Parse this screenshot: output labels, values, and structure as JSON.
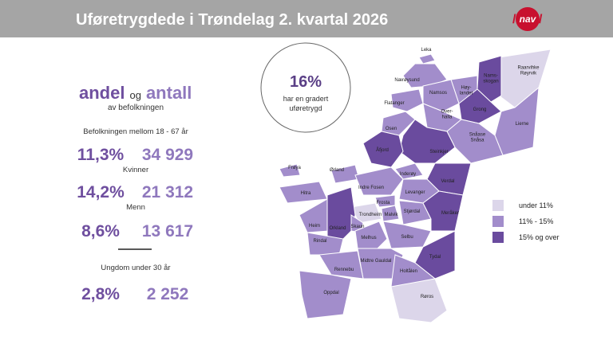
{
  "header": {
    "title": "Uføretrygdede i Trøndelag 2. kvartal 2026",
    "logo": "nav"
  },
  "left": {
    "heading_a": "andel",
    "heading_og": "og",
    "heading_b": "antall",
    "subheading": "av befolkningen",
    "groups": [
      {
        "label": "Befolkningen mellom 18 - 67 år",
        "share": "11,3%",
        "count": "34 929"
      },
      {
        "label": "Kvinner",
        "share": "14,2%",
        "count": "21 312"
      },
      {
        "label": "Menn",
        "share": "8,6%",
        "count": "13 617"
      },
      {
        "label": "Ungdom under 30 år",
        "share": "2,8%",
        "count": "2 252"
      }
    ]
  },
  "callout": {
    "value": "16%",
    "text": [
      "har en gradert",
      "uføretrygd"
    ]
  },
  "legend": [
    {
      "label": "under 11%",
      "color": "#dcd6ea"
    },
    {
      "label": "11% - 15%",
      "color": "#a28dcb"
    },
    {
      "label": "15% og over",
      "color": "#6a4b9e"
    }
  ],
  "municipalities": [
    {
      "label": [
        "Leka"
      ],
      "level": 1
    },
    {
      "label": [
        "Nærøysund"
      ],
      "level": 1
    },
    {
      "label": [
        "Raarvihke",
        "Røyrvik"
      ],
      "level": 0
    },
    {
      "label": [
        "Nams-",
        "skogan"
      ],
      "level": 2
    },
    {
      "label": [
        "Høy-",
        "landet"
      ],
      "level": 1
    },
    {
      "label": [
        "Namsos"
      ],
      "level": 1
    },
    {
      "label": [
        "Grong"
      ],
      "level": 2
    },
    {
      "label": [
        "Lierne"
      ],
      "level": 1
    },
    {
      "label": [
        "Flatanger"
      ],
      "level": 1
    },
    {
      "label": [
        "Over-",
        "halla"
      ],
      "level": 1
    },
    {
      "label": [
        "Osen"
      ],
      "level": 1
    },
    {
      "label": [
        "Snåase",
        "Snåsa"
      ],
      "level": 1
    },
    {
      "label": [
        "Steinkjer"
      ],
      "level": 2
    },
    {
      "label": [
        "Åfjord"
      ],
      "level": 2
    },
    {
      "label": [
        "Frøya"
      ],
      "level": 1
    },
    {
      "label": [
        "Ørland"
      ],
      "level": 1
    },
    {
      "label": [
        "Inderøy"
      ],
      "level": 1
    },
    {
      "label": [
        "Verdal"
      ],
      "level": 2
    },
    {
      "label": [
        "Indre Fosen"
      ],
      "level": 1
    },
    {
      "label": [
        "Hitra"
      ],
      "level": 1
    },
    {
      "label": [
        "Levanger"
      ],
      "level": 1
    },
    {
      "label": [
        "Frosta"
      ],
      "level": 1
    },
    {
      "label": [
        "Trondheim"
      ],
      "level": 0
    },
    {
      "label": [
        "Malvik"
      ],
      "level": 1
    },
    {
      "label": [
        "Stjørdal"
      ],
      "level": 1
    },
    {
      "label": [
        "Meråker"
      ],
      "level": 2
    },
    {
      "label": [
        "Heim"
      ],
      "level": 1
    },
    {
      "label": [
        "Orkland"
      ],
      "level": 2
    },
    {
      "label": [
        "Skaun"
      ],
      "level": 1
    },
    {
      "label": [
        "Melhus"
      ],
      "level": 1
    },
    {
      "label": [
        "Selbu"
      ],
      "level": 1
    },
    {
      "label": [
        "Rindal"
      ],
      "level": 1
    },
    {
      "label": [
        "Midtre Gauldal"
      ],
      "level": 1
    },
    {
      "label": [
        "Tydal"
      ],
      "level": 2
    },
    {
      "label": [
        "Rennebu"
      ],
      "level": 1
    },
    {
      "label": [
        "Holtålen"
      ],
      "level": 1
    },
    {
      "label": [
        "Oppdal"
      ],
      "level": 1
    },
    {
      "label": [
        "Røros"
      ],
      "level": 0
    }
  ]
}
